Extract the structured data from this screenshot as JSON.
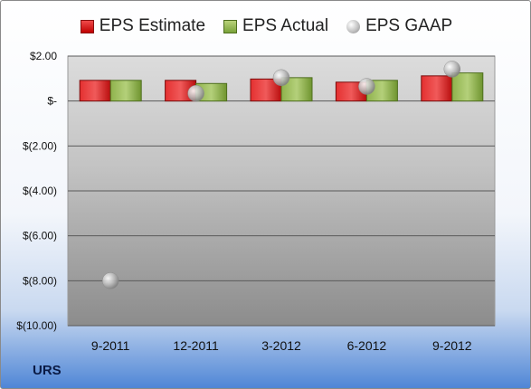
{
  "chart_data": {
    "type": "bar",
    "categories": [
      "9-2011",
      "12-2011",
      "3-2012",
      "6-2012",
      "9-2012"
    ],
    "series": [
      {
        "name": "EPS Estimate",
        "kind": "bar",
        "color": "#d42020",
        "values": [
          0.92,
          0.92,
          0.98,
          0.84,
          1.12
        ]
      },
      {
        "name": "EPS Actual",
        "kind": "bar",
        "color": "#8db24a",
        "values": [
          0.92,
          0.78,
          1.04,
          0.92,
          1.25
        ]
      },
      {
        "name": "EPS GAAP",
        "kind": "point",
        "color": "#b0b0b0",
        "values": [
          -8.0,
          0.34,
          1.04,
          0.65,
          1.42
        ]
      }
    ],
    "yticks": [
      "$2.00",
      "$-",
      "$(2.00)",
      "$(4.00)",
      "$(6.00)",
      "$(8.00)",
      "$(10.00)"
    ],
    "ytick_values": [
      2,
      0,
      -2,
      -4,
      -6,
      -8,
      -10
    ],
    "ylim": [
      -10,
      2
    ],
    "grid": true,
    "legend_position": "top"
  },
  "ticker": "URS"
}
